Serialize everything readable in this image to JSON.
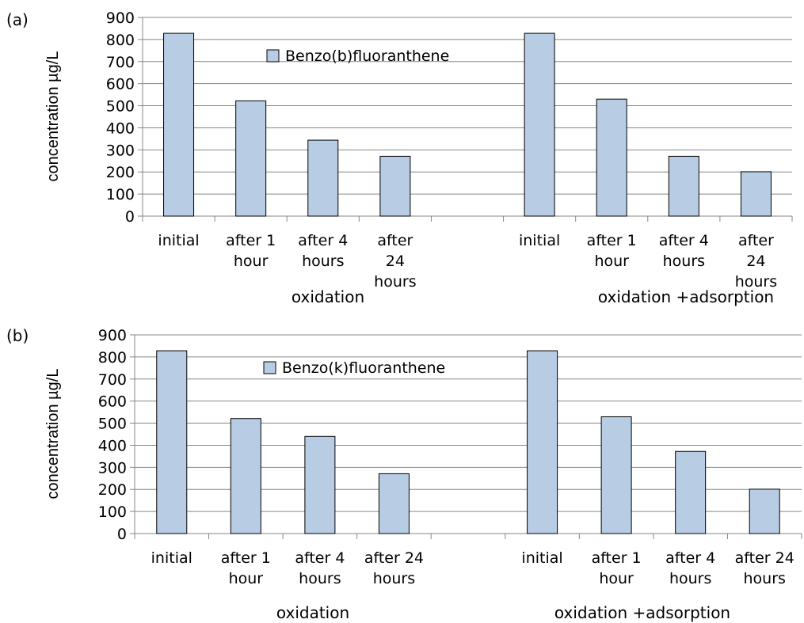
{
  "chart_data": [
    {
      "type": "bar",
      "panel_label": "(a)",
      "ylabel": "concentration µg/L",
      "ylim": [
        0,
        900
      ],
      "yticks": [
        0,
        100,
        200,
        300,
        400,
        500,
        600,
        700,
        800,
        900
      ],
      "grid": true,
      "legend_position": "top-center",
      "categories": [
        "initial",
        "after 1 hour",
        "after 4 hours",
        "after 24 hours",
        "",
        "initial",
        "after 1 hour",
        "after 4 hours",
        "after 24 hours"
      ],
      "category_lines": [
        [
          "initial"
        ],
        [
          "after 1",
          "hour"
        ],
        [
          "after 4",
          "hours"
        ],
        [
          "after",
          "24",
          "hours"
        ],
        [],
        [
          "initial"
        ],
        [
          "after 1",
          "hour"
        ],
        [
          "after 4",
          "hours"
        ],
        [
          "after",
          "24",
          "hours"
        ]
      ],
      "groups": [
        "oxidation",
        "oxidation +adsorption"
      ],
      "series": [
        {
          "name": "Benzo(b)fluoranthene",
          "values": [
            828,
            522,
            344,
            271,
            null,
            828,
            530,
            271,
            201
          ]
        }
      ],
      "colors": {
        "bar_fill": "#b8cce4",
        "bar_stroke": "#000000",
        "grid": "#878787"
      }
    },
    {
      "type": "bar",
      "panel_label": "(b)",
      "ylabel": "concentration µg/L",
      "ylim": [
        0,
        900
      ],
      "yticks": [
        0,
        100,
        200,
        300,
        400,
        500,
        600,
        700,
        800,
        900
      ],
      "grid": true,
      "legend_position": "top-center",
      "categories": [
        "initial",
        "after 1 hour",
        "after 4 hours",
        "after 24 hours",
        "",
        "initial",
        "after 1 hour",
        "after 4 hours",
        "after 24 hours"
      ],
      "category_lines": [
        [
          "initial"
        ],
        [
          "after 1",
          "hour"
        ],
        [
          "after 4",
          "hours"
        ],
        [
          "after 24",
          "hours"
        ],
        [],
        [
          "initial"
        ],
        [
          "after 1",
          "hour"
        ],
        [
          "after 4",
          "hours"
        ],
        [
          "after 24",
          "hours"
        ]
      ],
      "groups": [
        "oxidation",
        "oxidation +adsorption"
      ],
      "series": [
        {
          "name": "Benzo(k)fluoranthene",
          "values": [
            828,
            521,
            440,
            271,
            null,
            828,
            529,
            372,
            201
          ]
        }
      ],
      "colors": {
        "bar_fill": "#b8cce4",
        "bar_stroke": "#000000",
        "grid": "#878787"
      }
    }
  ]
}
